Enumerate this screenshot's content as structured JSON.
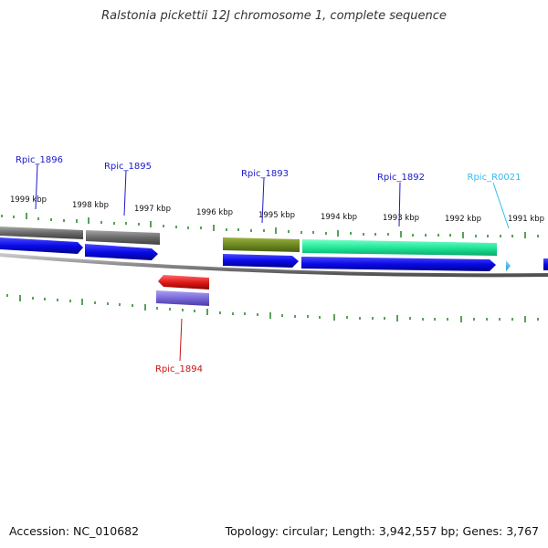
{
  "title": "Ralstonia pickettii 12J chromosome 1, complete sequence",
  "footer": {
    "accession": "Accession: NC_010682",
    "summary": "Topology: circular; Length: 3,942,557 bp; Genes: 3,767"
  },
  "colors": {
    "backbone": "#8a8a8a",
    "tick": "#2e8b2e",
    "cds_forward": "#1010e0",
    "gene_gray": "#6e6e6e",
    "gene_olive": "#6e8a22",
    "gene_teal": "#22e89a",
    "gene_red": "#e01a1a",
    "gene_lavender": "#7a6ad8",
    "trna": "#33bbee"
  },
  "scale_labels": [
    "1999 kbp",
    "1998 kbp",
    "1997 kbp",
    "1996 kbp",
    "1995 kbp",
    "1994 kbp",
    "1993 kbp",
    "1992 kbp",
    "1991 kbp"
  ],
  "gene_labels": [
    {
      "id": "Rpic_1896",
      "color": "#1a1acc"
    },
    {
      "id": "Rpic_1895",
      "color": "#1a1acc"
    },
    {
      "id": "Rpic_1893",
      "color": "#1a1acc"
    },
    {
      "id": "Rpic_1892",
      "color": "#1a1acc"
    },
    {
      "id": "Rpic_R0021",
      "color": "#33bbee"
    },
    {
      "id": "Rpic_1894",
      "color": "#cc1111"
    }
  ]
}
